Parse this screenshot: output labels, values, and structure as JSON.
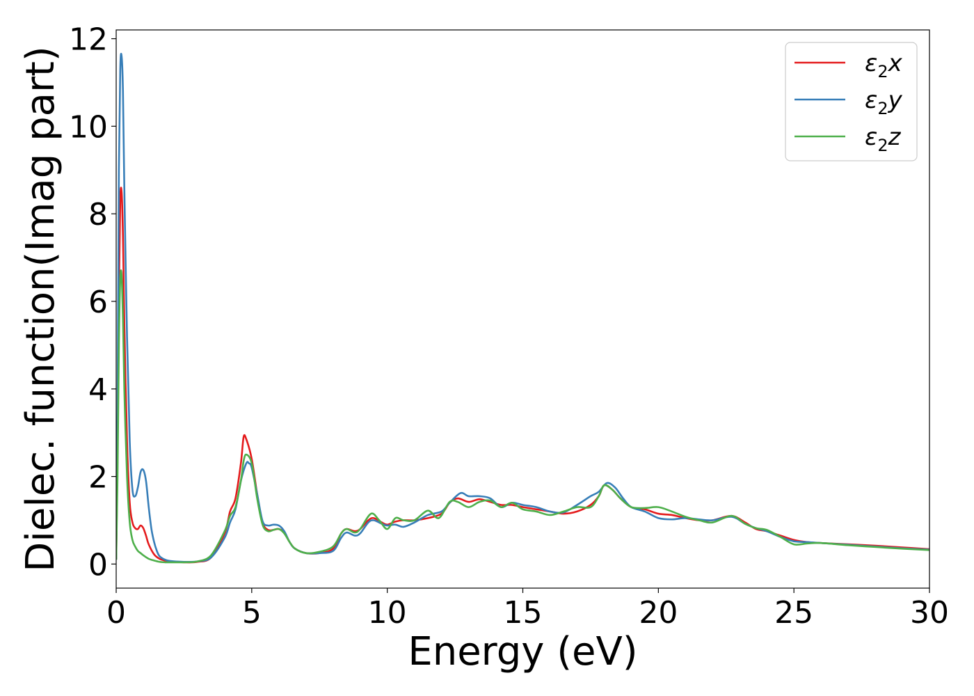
{
  "chart_data": {
    "type": "line",
    "xlabel": "Energy (eV)",
    "ylabel": "Dielec. function(Imag part)",
    "xlim": [
      0,
      30
    ],
    "ylim": [
      -0.55,
      12.2
    ],
    "xticks": [
      0,
      5,
      10,
      15,
      20,
      25,
      30
    ],
    "yticks": [
      0,
      2,
      4,
      6,
      8,
      10,
      12
    ],
    "xtick_labels": [
      "0",
      "5",
      "10",
      "15",
      "20",
      "25",
      "30"
    ],
    "ytick_labels": [
      "0",
      "2",
      "4",
      "6",
      "8",
      "10",
      "12"
    ],
    "grid": false,
    "legend_position": "top-right",
    "series": [
      {
        "name": "ε2x",
        "legend": {
          "base": "ε",
          "sub": "2",
          "suffix": "x"
        },
        "color": "#e41a1c",
        "x": [
          0,
          0.05,
          0.1,
          0.15,
          0.2,
          0.25,
          0.3,
          0.4,
          0.5,
          0.6,
          0.7,
          0.8,
          0.9,
          1.0,
          1.1,
          1.2,
          1.4,
          1.6,
          1.8,
          2.0,
          2.5,
          3.0,
          3.5,
          4.0,
          4.2,
          4.4,
          4.6,
          4.7,
          4.8,
          5.0,
          5.2,
          5.4,
          5.6,
          5.8,
          6.0,
          6.2,
          6.4,
          6.6,
          7.0,
          7.5,
          8.0,
          8.3,
          8.5,
          8.8,
          9.0,
          9.3,
          9.5,
          9.8,
          10.0,
          10.3,
          10.6,
          11.0,
          11.5,
          12.0,
          12.3,
          12.6,
          13.0,
          13.4,
          13.8,
          14.2,
          14.6,
          15.0,
          15.5,
          16.0,
          16.5,
          17.0,
          17.5,
          17.8,
          18.0,
          18.3,
          18.6,
          19.0,
          19.5,
          20.0,
          20.5,
          21.0,
          21.5,
          22.0,
          22.7,
          23.2,
          23.6,
          24.0,
          24.5,
          25.0,
          25.5,
          26.0,
          27.0,
          28.0,
          29.0,
          30.0
        ],
        "y": [
          0.1,
          2.5,
          6.2,
          8.3,
          8.5,
          7.5,
          5.5,
          2.8,
          1.4,
          0.95,
          0.82,
          0.8,
          0.88,
          0.82,
          0.65,
          0.45,
          0.22,
          0.12,
          0.08,
          0.06,
          0.04,
          0.05,
          0.15,
          0.7,
          1.2,
          1.5,
          2.3,
          2.9,
          2.85,
          2.4,
          1.6,
          0.95,
          0.78,
          0.78,
          0.8,
          0.72,
          0.5,
          0.35,
          0.25,
          0.25,
          0.35,
          0.7,
          0.8,
          0.75,
          0.8,
          1.0,
          1.05,
          0.95,
          0.9,
          0.97,
          1.0,
          1.0,
          1.05,
          1.15,
          1.4,
          1.5,
          1.42,
          1.48,
          1.42,
          1.35,
          1.35,
          1.3,
          1.25,
          1.2,
          1.15,
          1.2,
          1.35,
          1.55,
          1.8,
          1.7,
          1.5,
          1.3,
          1.25,
          1.15,
          1.12,
          1.05,
          1.0,
          1.0,
          1.1,
          0.95,
          0.8,
          0.75,
          0.65,
          0.55,
          0.5,
          0.48,
          0.45,
          0.42,
          0.38,
          0.34
        ]
      },
      {
        "name": "ε2y",
        "legend": {
          "base": "ε",
          "sub": "2",
          "suffix": "y"
        },
        "color": "#377eb8",
        "x": [
          0,
          0.05,
          0.1,
          0.15,
          0.2,
          0.25,
          0.3,
          0.4,
          0.5,
          0.6,
          0.7,
          0.8,
          0.9,
          1.0,
          1.1,
          1.2,
          1.3,
          1.4,
          1.5,
          1.6,
          1.8,
          2.0,
          2.5,
          3.0,
          3.5,
          4.0,
          4.2,
          4.4,
          4.6,
          4.8,
          4.9,
          5.0,
          5.2,
          5.4,
          5.6,
          5.8,
          6.0,
          6.2,
          6.4,
          6.6,
          7.0,
          7.5,
          8.0,
          8.3,
          8.5,
          8.8,
          9.0,
          9.3,
          9.5,
          9.8,
          10.0,
          10.3,
          10.6,
          11.0,
          11.5,
          12.0,
          12.3,
          12.7,
          13.0,
          13.4,
          13.8,
          14.2,
          14.6,
          15.0,
          15.5,
          16.0,
          16.5,
          17.0,
          17.5,
          17.8,
          18.1,
          18.4,
          18.7,
          19.0,
          19.5,
          20.0,
          20.5,
          21.0,
          21.5,
          22.0,
          22.7,
          23.2,
          23.6,
          24.0,
          24.5,
          25.0,
          25.5,
          26.0,
          27.0,
          28.0,
          29.0,
          30.0
        ],
        "y": [
          0.1,
          3.5,
          9.0,
          11.3,
          11.6,
          10.8,
          8.6,
          5.2,
          2.8,
          1.7,
          1.55,
          1.75,
          2.1,
          2.15,
          1.9,
          1.3,
          0.8,
          0.5,
          0.3,
          0.18,
          0.1,
          0.07,
          0.05,
          0.06,
          0.15,
          0.6,
          0.95,
          1.25,
          1.9,
          2.3,
          2.3,
          2.2,
          1.6,
          0.98,
          0.88,
          0.9,
          0.88,
          0.75,
          0.5,
          0.35,
          0.25,
          0.25,
          0.3,
          0.6,
          0.72,
          0.65,
          0.7,
          0.95,
          1.0,
          0.92,
          0.88,
          0.9,
          0.85,
          0.95,
          1.12,
          1.2,
          1.4,
          1.62,
          1.55,
          1.55,
          1.5,
          1.3,
          1.4,
          1.35,
          1.3,
          1.2,
          1.18,
          1.35,
          1.55,
          1.65,
          1.85,
          1.75,
          1.5,
          1.3,
          1.2,
          1.05,
          1.02,
          1.05,
          1.02,
          1.0,
          1.08,
          0.92,
          0.82,
          0.75,
          0.62,
          0.52,
          0.5,
          0.48,
          0.44,
          0.4,
          0.36,
          0.33
        ]
      },
      {
        "name": "ε2z",
        "legend": {
          "base": "ε",
          "sub": "2",
          "suffix": "z"
        },
        "color": "#4daf4a",
        "x": [
          0,
          0.05,
          0.1,
          0.15,
          0.2,
          0.25,
          0.3,
          0.4,
          0.5,
          0.6,
          0.7,
          0.8,
          0.9,
          1.0,
          1.2,
          1.4,
          1.6,
          1.8,
          2.0,
          2.5,
          3.0,
          3.5,
          4.0,
          4.2,
          4.4,
          4.6,
          4.7,
          4.8,
          5.0,
          5.2,
          5.4,
          5.6,
          5.8,
          6.0,
          6.2,
          6.4,
          6.6,
          7.0,
          7.5,
          8.0,
          8.3,
          8.5,
          8.8,
          9.0,
          9.4,
          9.7,
          10.0,
          10.3,
          10.6,
          11.0,
          11.5,
          11.9,
          12.3,
          12.6,
          13.0,
          13.4,
          13.8,
          14.2,
          14.6,
          15.0,
          15.5,
          16.0,
          16.5,
          17.0,
          17.5,
          17.8,
          18.0,
          18.3,
          18.6,
          19.0,
          19.5,
          20.0,
          20.5,
          21.0,
          21.5,
          22.0,
          22.7,
          23.2,
          23.6,
          24.0,
          24.5,
          25.0,
          25.5,
          26.0,
          27.0,
          28.0,
          29.0,
          30.0
        ],
        "y": [
          0.1,
          2.0,
          5.0,
          6.5,
          6.6,
          5.6,
          4.0,
          2.0,
          0.95,
          0.55,
          0.4,
          0.3,
          0.25,
          0.2,
          0.12,
          0.08,
          0.05,
          0.04,
          0.04,
          0.04,
          0.06,
          0.2,
          0.75,
          1.1,
          1.3,
          1.9,
          2.35,
          2.5,
          2.3,
          1.5,
          0.9,
          0.75,
          0.78,
          0.8,
          0.7,
          0.5,
          0.35,
          0.25,
          0.28,
          0.4,
          0.7,
          0.8,
          0.72,
          0.8,
          1.15,
          1.0,
          0.8,
          1.05,
          1.0,
          1.0,
          1.22,
          1.05,
          1.42,
          1.42,
          1.3,
          1.42,
          1.45,
          1.3,
          1.4,
          1.25,
          1.2,
          1.12,
          1.2,
          1.3,
          1.3,
          1.55,
          1.8,
          1.7,
          1.5,
          1.3,
          1.28,
          1.3,
          1.2,
          1.08,
          1.0,
          0.95,
          1.1,
          0.92,
          0.82,
          0.78,
          0.62,
          0.45,
          0.47,
          0.48,
          0.43,
          0.39,
          0.35,
          0.32
        ]
      }
    ]
  }
}
